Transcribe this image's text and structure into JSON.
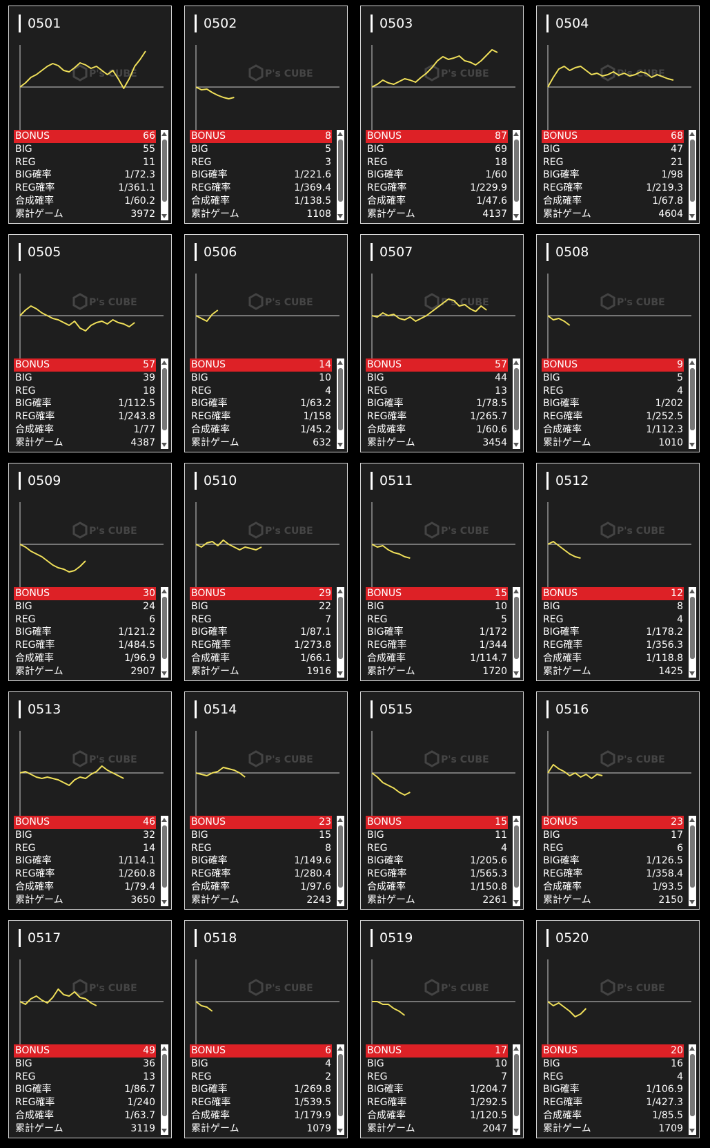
{
  "labels": {
    "bonus": "BONUS",
    "big": "BIG",
    "reg": "REG",
    "big_rate": "BIG確率",
    "reg_rate": "REG確率",
    "total_rate": "合成確率",
    "games": "累計ゲーム"
  },
  "colors": {
    "line": "#f0e05a",
    "bonus_bg": "#dd2126",
    "card_bg": "#1e1e1e"
  },
  "watermark": "P's CUBE",
  "machines": [
    {
      "num": "0501",
      "bonus": "66",
      "big": "55",
      "reg": "11",
      "big_rate": "1/72.3",
      "reg_rate": "1/361.1",
      "total_rate": "1/60.2",
      "games": "3972",
      "graph": [
        0,
        6,
        14,
        18,
        24,
        30,
        34,
        31,
        24,
        22,
        28,
        35,
        32,
        27,
        30,
        24,
        18,
        24,
        12,
        -2,
        12,
        30,
        40,
        52
      ]
    },
    {
      "num": "0502",
      "bonus": "8",
      "big": "5",
      "reg": "3",
      "big_rate": "1/221.6",
      "reg_rate": "1/369.4",
      "total_rate": "1/138.5",
      "games": "1108",
      "graph": [
        0,
        -4,
        -3,
        -8,
        -12,
        -15,
        -17,
        -15
      ]
    },
    {
      "num": "0503",
      "bonus": "87",
      "big": "69",
      "reg": "18",
      "big_rate": "1/60",
      "reg_rate": "1/229.9",
      "total_rate": "1/47.6",
      "games": "4137",
      "graph": [
        0,
        4,
        10,
        6,
        4,
        8,
        12,
        10,
        7,
        14,
        20,
        28,
        38,
        44,
        40,
        42,
        45,
        38,
        36,
        32,
        38,
        46,
        54,
        50
      ]
    },
    {
      "num": "0504",
      "bonus": "68",
      "big": "47",
      "reg": "21",
      "big_rate": "1/98",
      "reg_rate": "1/219.3",
      "total_rate": "1/67.8",
      "games": "4604",
      "graph": [
        0,
        14,
        26,
        30,
        24,
        28,
        30,
        24,
        18,
        20,
        16,
        18,
        22,
        17,
        20,
        16,
        18,
        22,
        20,
        14,
        18,
        15,
        12,
        10
      ]
    },
    {
      "num": "0505",
      "bonus": "57",
      "big": "39",
      "reg": "18",
      "big_rate": "1/112.5",
      "reg_rate": "1/243.8",
      "total_rate": "1/77",
      "games": "4387",
      "graph": [
        0,
        8,
        14,
        10,
        4,
        0,
        -4,
        -6,
        -10,
        -14,
        -8,
        -18,
        -22,
        -14,
        -10,
        -8,
        -12,
        -6,
        -10,
        -12,
        -16,
        -10
      ]
    },
    {
      "num": "0506",
      "bonus": "14",
      "big": "10",
      "reg": "4",
      "big_rate": "1/63.2",
      "reg_rate": "1/158",
      "total_rate": "1/45.2",
      "games": "632",
      "graph": [
        0,
        -4,
        -8,
        2,
        8
      ]
    },
    {
      "num": "0507",
      "bonus": "57",
      "big": "44",
      "reg": "13",
      "big_rate": "1/78.5",
      "reg_rate": "1/265.7",
      "total_rate": "1/60.6",
      "games": "3454",
      "graph": [
        0,
        -2,
        4,
        0,
        2,
        -4,
        -6,
        -2,
        -8,
        -4,
        0,
        6,
        12,
        18,
        24,
        22,
        14,
        16,
        10,
        6,
        14,
        8
      ]
    },
    {
      "num": "0508",
      "bonus": "9",
      "big": "5",
      "reg": "4",
      "big_rate": "1/202",
      "reg_rate": "1/252.5",
      "total_rate": "1/112.3",
      "games": "1010",
      "graph": [
        0,
        -6,
        -4,
        -8,
        -14
      ]
    },
    {
      "num": "0509",
      "bonus": "30",
      "big": "24",
      "reg": "6",
      "big_rate": "1/121.2",
      "reg_rate": "1/484.5",
      "total_rate": "1/96.9",
      "games": "2907",
      "graph": [
        0,
        -4,
        -10,
        -14,
        -18,
        -24,
        -30,
        -34,
        -36,
        -40,
        -38,
        -32,
        -24
      ]
    },
    {
      "num": "0510",
      "bonus": "29",
      "big": "22",
      "reg": "7",
      "big_rate": "1/87.1",
      "reg_rate": "1/273.8",
      "total_rate": "1/66.1",
      "games": "1916",
      "graph": [
        0,
        -4,
        2,
        4,
        -2,
        6,
        0,
        -4,
        -8,
        -4,
        -6,
        -8,
        -4
      ]
    },
    {
      "num": "0511",
      "bonus": "15",
      "big": "10",
      "reg": "5",
      "big_rate": "1/172",
      "reg_rate": "1/344",
      "total_rate": "1/114.7",
      "games": "1720",
      "graph": [
        0,
        -4,
        -2,
        -8,
        -12,
        -14,
        -18,
        -20
      ]
    },
    {
      "num": "0512",
      "bonus": "12",
      "big": "8",
      "reg": "4",
      "big_rate": "1/178.2",
      "reg_rate": "1/356.3",
      "total_rate": "1/118.8",
      "games": "1425",
      "graph": [
        0,
        4,
        -2,
        -8,
        -14,
        -18,
        -20
      ]
    },
    {
      "num": "0513",
      "bonus": "46",
      "big": "32",
      "reg": "14",
      "big_rate": "1/114.1",
      "reg_rate": "1/260.8",
      "total_rate": "1/79.4",
      "games": "3650",
      "graph": [
        0,
        2,
        -2,
        -6,
        -8,
        -6,
        -8,
        -10,
        -14,
        -18,
        -10,
        -6,
        -8,
        -2,
        2,
        10,
        4,
        0,
        -4,
        -8
      ]
    },
    {
      "num": "0514",
      "bonus": "23",
      "big": "15",
      "reg": "8",
      "big_rate": "1/149.6",
      "reg_rate": "1/280.4",
      "total_rate": "1/97.6",
      "games": "2243",
      "graph": [
        0,
        -2,
        -4,
        0,
        2,
        8,
        6,
        4,
        0,
        -6
      ]
    },
    {
      "num": "0515",
      "bonus": "15",
      "big": "11",
      "reg": "4",
      "big_rate": "1/205.6",
      "reg_rate": "1/565.3",
      "total_rate": "1/150.8",
      "games": "2261",
      "graph": [
        0,
        -6,
        -14,
        -18,
        -22,
        -28,
        -32,
        -28
      ]
    },
    {
      "num": "0516",
      "bonus": "23",
      "big": "17",
      "reg": "6",
      "big_rate": "1/126.5",
      "reg_rate": "1/358.4",
      "total_rate": "1/93.5",
      "games": "2150",
      "graph": [
        0,
        12,
        6,
        2,
        -4,
        0,
        -6,
        -2,
        -8,
        -2,
        -4
      ]
    },
    {
      "num": "0517",
      "bonus": "49",
      "big": "36",
      "reg": "13",
      "big_rate": "1/86.7",
      "reg_rate": "1/240",
      "total_rate": "1/63.7",
      "games": "3119",
      "graph": [
        0,
        -4,
        4,
        8,
        2,
        -2,
        6,
        18,
        10,
        8,
        14,
        6,
        4,
        -2,
        -6
      ]
    },
    {
      "num": "0518",
      "bonus": "6",
      "big": "4",
      "reg": "2",
      "big_rate": "1/269.8",
      "reg_rate": "1/539.5",
      "total_rate": "1/179.9",
      "games": "1079",
      "graph": [
        0,
        -6,
        -8,
        -14
      ]
    },
    {
      "num": "0519",
      "bonus": "17",
      "big": "10",
      "reg": "7",
      "big_rate": "1/204.7",
      "reg_rate": "1/292.5",
      "total_rate": "1/120.5",
      "games": "2047",
      "graph": [
        0,
        0,
        -4,
        -4,
        -10,
        -14,
        -20
      ]
    },
    {
      "num": "0520",
      "bonus": "20",
      "big": "16",
      "reg": "4",
      "big_rate": "1/106.9",
      "reg_rate": "1/427.3",
      "total_rate": "1/85.5",
      "games": "1709",
      "graph": [
        0,
        -6,
        -2,
        -8,
        -14,
        -22,
        -18,
        -10
      ]
    }
  ]
}
